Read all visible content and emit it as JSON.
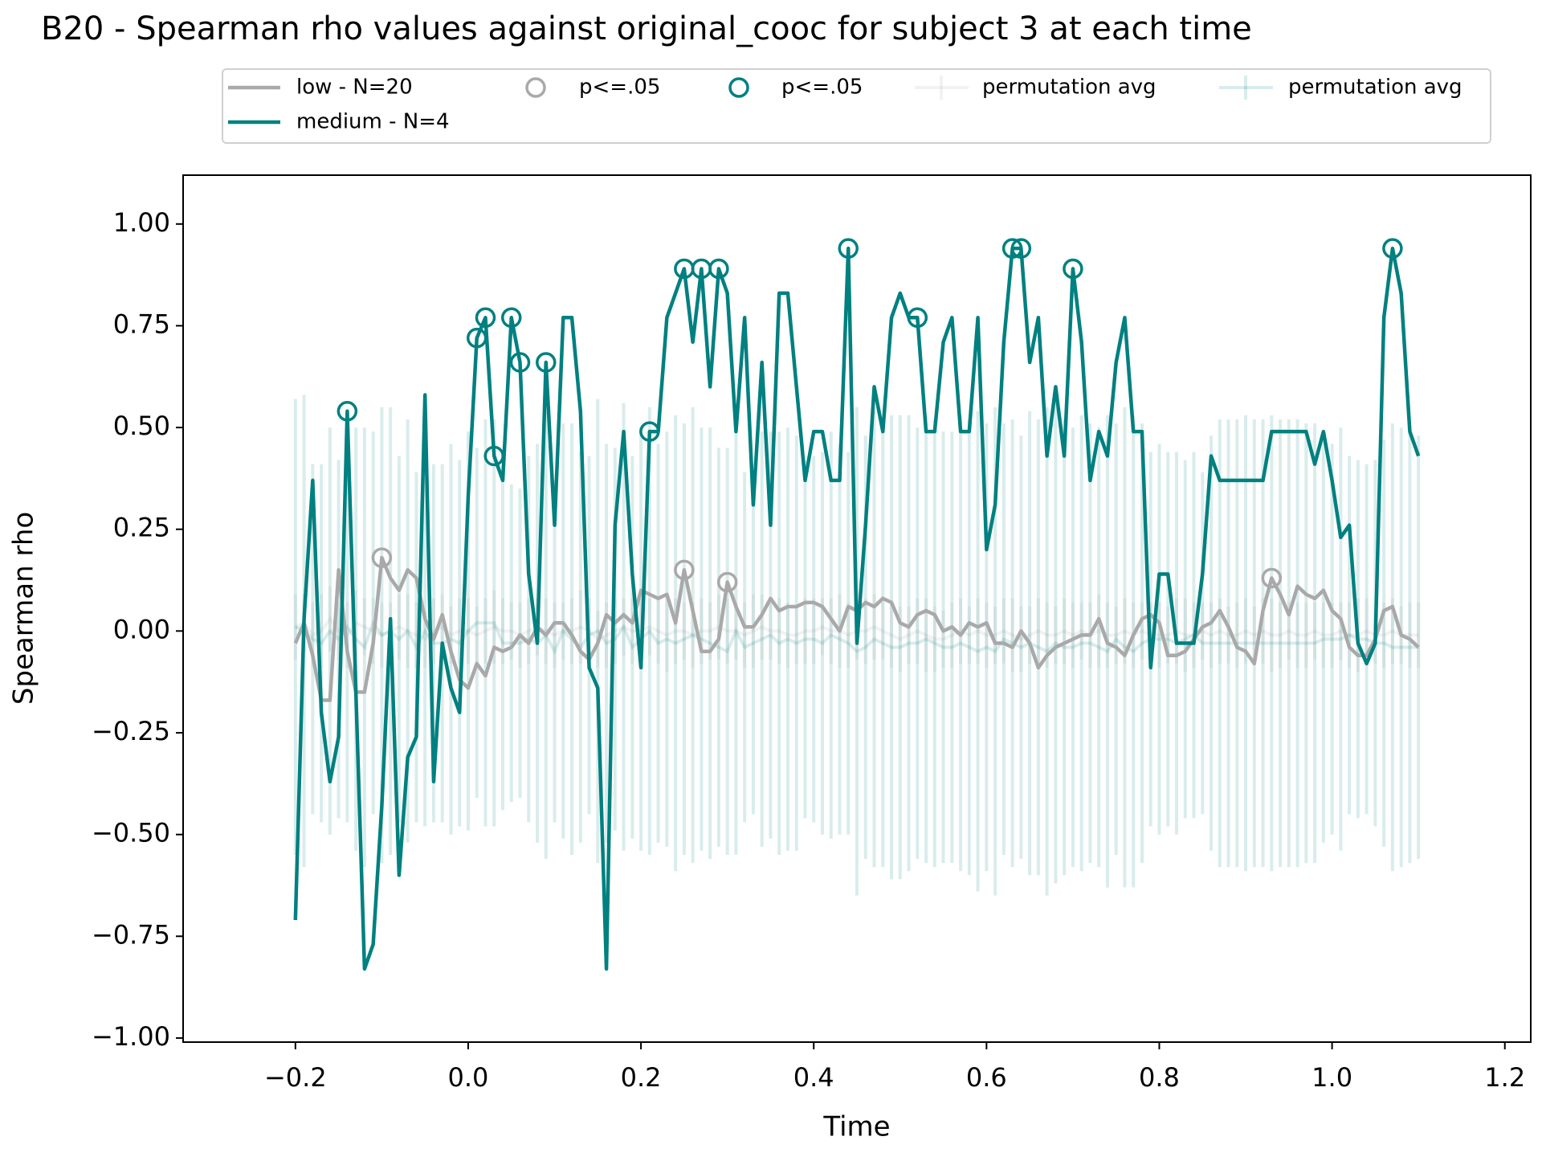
{
  "chart_data": {
    "type": "line",
    "title": "B20 - Spearman rho values against original_cooc for subject 3 at each time",
    "xlabel": "Time",
    "ylabel": "Spearman rho",
    "xlim": [
      -0.33,
      1.23
    ],
    "ylim": [
      -1.01,
      1.12
    ],
    "xticks": [
      {
        "value": -0.2,
        "label": "−0.2"
      },
      {
        "value": 0,
        "label": "0.0"
      },
      0.2,
      0.4,
      0.6,
      0.8,
      {
        "value": 1,
        "label": "1.0"
      },
      1.2
    ],
    "yticks": [
      {
        "value": -1,
        "label": "−1.00"
      },
      {
        "value": -0.75,
        "label": "−0.75"
      },
      {
        "value": -0.5,
        "label": "−0.50"
      },
      {
        "value": -0.25,
        "label": "−0.25"
      },
      {
        "value": 0,
        "label": "0.00"
      },
      {
        "value": 0.25,
        "label": "0.25"
      },
      {
        "value": 0.5,
        "label": "0.50"
      },
      {
        "value": 0.75,
        "label": "0.75"
      },
      {
        "value": 1,
        "label": "1.00"
      }
    ],
    "grid": false,
    "legend": "upper center",
    "x": [
      -0.2,
      -0.19,
      -0.18,
      -0.17,
      -0.16,
      -0.15,
      -0.14,
      -0.13,
      -0.12,
      -0.11,
      -0.1,
      -0.09,
      -0.08,
      -0.07,
      -0.06,
      -0.05,
      -0.04,
      -0.03,
      -0.02,
      -0.01,
      0,
      0.01,
      0.02,
      0.03,
      0.04,
      0.05,
      0.06,
      0.07,
      0.08,
      0.09,
      0.1,
      0.11,
      0.12,
      0.13,
      0.14,
      0.15,
      0.16,
      0.17,
      0.18,
      0.19,
      0.2,
      0.21,
      0.22,
      0.23,
      0.24,
      0.25,
      0.26,
      0.27,
      0.28,
      0.29,
      0.3,
      0.31,
      0.32,
      0.33,
      0.34,
      0.35,
      0.36,
      0.37,
      0.38,
      0.39,
      0.4,
      0.41,
      0.42,
      0.43,
      0.44,
      0.45,
      0.46,
      0.47,
      0.48,
      0.49,
      0.5,
      0.51,
      0.52,
      0.53,
      0.54,
      0.55,
      0.56,
      0.57,
      0.58,
      0.59,
      0.6,
      0.61,
      0.62,
      0.63,
      0.64,
      0.65,
      0.66,
      0.67,
      0.68,
      0.69,
      0.7,
      0.71,
      0.72,
      0.73,
      0.74,
      0.75,
      0.76,
      0.77,
      0.78,
      0.79,
      0.8,
      0.81,
      0.82,
      0.83,
      0.84,
      0.85,
      0.86,
      0.87,
      0.88,
      0.89,
      0.9,
      0.91,
      0.92,
      0.93,
      0.94,
      0.95,
      0.96,
      0.97,
      0.98,
      0.99,
      1,
      1.01,
      1.02,
      1.03,
      1.04,
      1.05,
      1.06,
      1.07,
      1.08,
      1.09,
      1.1
    ],
    "series": [
      {
        "name": "low - N=20",
        "color": "#a9a9a9",
        "kind": "line",
        "values": [
          -0.03,
          0.02,
          -0.06,
          -0.17,
          -0.17,
          0.15,
          -0.05,
          -0.15,
          -0.15,
          -0.03,
          0.18,
          0.13,
          0.1,
          0.15,
          0.13,
          0.03,
          -0.02,
          0.04,
          -0.05,
          -0.12,
          -0.14,
          -0.08,
          -0.11,
          -0.04,
          -0.05,
          -0.04,
          -0.01,
          -0.03,
          0.01,
          -0.01,
          0.02,
          0.02,
          -0.01,
          -0.05,
          -0.07,
          -0.03,
          0.04,
          0.02,
          0.04,
          0.02,
          0.1,
          0.09,
          0.08,
          0.09,
          0.02,
          0.15,
          0.05,
          -0.05,
          -0.05,
          -0.02,
          0.12,
          0.06,
          0.01,
          0.01,
          0.04,
          0.08,
          0.05,
          0.06,
          0.06,
          0.07,
          0.07,
          0.06,
          0.03,
          0,
          0.06,
          0.05,
          0.07,
          0.06,
          0.08,
          0.07,
          0.02,
          0.01,
          0.04,
          0.05,
          0.04,
          0,
          0.01,
          -0.01,
          0.02,
          0.01,
          0.02,
          -0.03,
          -0.03,
          -0.04,
          0,
          -0.03,
          -0.09,
          -0.06,
          -0.04,
          -0.03,
          -0.02,
          -0.01,
          -0.01,
          0.03,
          -0.03,
          -0.04,
          -0.06,
          -0.01,
          0.03,
          0.04,
          0.02,
          -0.06,
          -0.06,
          -0.05,
          -0.02,
          0.01,
          0.02,
          0.05,
          0.01,
          -0.04,
          -0.05,
          -0.08,
          0.05,
          0.13,
          0.09,
          0.04,
          0.11,
          0.09,
          0.08,
          0.1,
          0.05,
          0.03,
          -0.04,
          -0.06,
          -0.06,
          -0.02,
          0.05,
          0.06,
          -0.01,
          -0.02,
          -0.04
        ]
      },
      {
        "name": "medium - N=4",
        "color": "#008080",
        "kind": "line",
        "values": [
          -0.71,
          0.03,
          0.37,
          -0.2,
          -0.37,
          -0.26,
          0.54,
          -0.15,
          -0.83,
          -0.77,
          -0.43,
          0.03,
          -0.6,
          -0.31,
          -0.26,
          0.58,
          -0.37,
          -0.03,
          -0.14,
          -0.2,
          0.33,
          0.72,
          0.77,
          0.43,
          0.37,
          0.77,
          0.66,
          0.14,
          -0.03,
          0.66,
          0.26,
          0.77,
          0.77,
          0.54,
          -0.09,
          -0.14,
          -0.83,
          0.26,
          0.49,
          0.14,
          -0.09,
          0.49,
          0.49,
          0.77,
          0.83,
          0.89,
          0.71,
          0.89,
          0.6,
          0.89,
          0.83,
          0.49,
          0.77,
          0.31,
          0.66,
          0.26,
          0.83,
          0.83,
          0.6,
          0.37,
          0.49,
          0.49,
          0.37,
          0.37,
          0.94,
          -0.03,
          0.26,
          0.6,
          0.49,
          0.77,
          0.83,
          0.77,
          0.77,
          0.49,
          0.49,
          0.71,
          0.77,
          0.49,
          0.49,
          0.77,
          0.2,
          0.31,
          0.71,
          0.94,
          0.94,
          0.66,
          0.77,
          0.43,
          0.6,
          0.43,
          0.89,
          0.71,
          0.37,
          0.49,
          0.43,
          0.66,
          0.77,
          0.49,
          0.49,
          -0.09,
          0.14,
          0.14,
          -0.03,
          -0.03,
          -0.03,
          0.14,
          0.43,
          0.37,
          0.37,
          0.37,
          0.37,
          0.37,
          0.37,
          0.49,
          0.49,
          0.49,
          0.49,
          0.49,
          0.41,
          0.49,
          0.37,
          0.23,
          0.26,
          -0.03,
          -0.08,
          -0.03,
          0.77,
          0.94,
          0.83,
          0.49,
          0.43
        ]
      },
      {
        "name": "p<=.05",
        "color": "#a9a9a9",
        "kind": "scatter",
        "x": [
          -0.1,
          0.25,
          0.3,
          0.93
        ],
        "values": [
          0.18,
          0.15,
          0.12,
          0.13
        ]
      },
      {
        "name": "p<=.05",
        "color": "#008080",
        "kind": "scatter",
        "x": [
          -0.14,
          0.01,
          0.02,
          0.03,
          0.05,
          0.06,
          0.09,
          0.21,
          0.25,
          0.27,
          0.29,
          0.44,
          0.52,
          0.63,
          0.64,
          0.7,
          1.07
        ],
        "values": [
          0.54,
          0.72,
          0.77,
          0.43,
          0.77,
          0.66,
          0.66,
          0.49,
          0.89,
          0.89,
          0.89,
          0.94,
          0.77,
          0.94,
          0.94,
          0.89,
          0.94
        ]
      },
      {
        "name": "permutation avg",
        "color": "#a9a9a9",
        "kind": "errorbar",
        "values": [
          0.01,
          0.02,
          -0.01,
          0,
          0.03,
          0,
          -0.01,
          0.02,
          0.01,
          0,
          -0.01,
          0,
          0.01,
          0,
          -0.01,
          -0.02,
          0,
          0.01,
          -0.01,
          0,
          0,
          -0.01,
          0,
          0.01,
          0,
          0,
          -0.01,
          0,
          0.01,
          0,
          -0.01,
          0,
          0,
          0.01,
          0,
          -0.02,
          -0.01,
          0,
          0.01,
          0,
          0,
          0.01,
          0,
          -0.01,
          0,
          0,
          -0.01,
          0,
          0,
          0.01,
          0,
          0,
          -0.01,
          0,
          0.01,
          0,
          0,
          -0.01,
          -0.01,
          0,
          0,
          0.01,
          0,
          0,
          -0.01,
          0,
          0,
          0.01,
          0,
          -0.01,
          -0.02,
          -0.01,
          0,
          -0.01,
          -0.02,
          -0.02,
          -0.01,
          0,
          -0.01,
          0,
          -0.01,
          -0.01,
          0,
          -0.01,
          -0.02,
          -0.01,
          0,
          -0.01,
          -0.01,
          0,
          -0.01,
          0,
          -0.01,
          0,
          -0.01,
          -0.01,
          0,
          -0.01,
          0,
          -0.01,
          -0.01,
          -0.01,
          0,
          -0.01,
          -0.01,
          0,
          -0.01,
          0,
          -0.01,
          -0.01,
          0,
          -0.01,
          0,
          -0.01,
          -0.01,
          0,
          -0.01,
          -0.01,
          0,
          -0.01,
          -0.01,
          0,
          -0.01,
          -0.01,
          0,
          -0.01,
          -0.01,
          0,
          -0.01,
          -0.01,
          -0.01
        ],
        "errors": [
          0.08,
          0.07,
          0.08,
          0.09,
          0.08,
          0.07,
          0.08,
          0.08,
          0.07,
          0.08,
          0.08,
          0.07,
          0.08,
          0.09,
          0.08,
          0.07,
          0.08,
          0.08,
          0.07,
          0.08,
          0.08,
          0.07,
          0.08,
          0.09,
          0.08,
          0.07,
          0.08,
          0.08,
          0.07,
          0.08,
          0.08,
          0.07,
          0.08,
          0.09,
          0.08,
          0.07,
          0.08,
          0.08,
          0.07,
          0.08,
          0.08,
          0.07,
          0.08,
          0.09,
          0.08,
          0.07,
          0.08,
          0.08,
          0.07,
          0.08,
          0.08,
          0.07,
          0.08,
          0.09,
          0.08,
          0.07,
          0.08,
          0.08,
          0.07,
          0.08,
          0.08,
          0.07,
          0.08,
          0.09,
          0.08,
          0.07,
          0.08,
          0.08,
          0.07,
          0.08,
          0.08,
          0.07,
          0.08,
          0.09,
          0.08,
          0.07,
          0.08,
          0.08,
          0.07,
          0.08,
          0.08,
          0.07,
          0.08,
          0.09,
          0.08,
          0.07,
          0.08,
          0.08,
          0.07,
          0.08,
          0.08,
          0.07,
          0.08,
          0.09,
          0.08,
          0.07,
          0.08,
          0.08,
          0.07,
          0.08,
          0.08,
          0.07,
          0.08,
          0.09,
          0.08,
          0.07,
          0.08,
          0.08,
          0.07,
          0.08,
          0.08,
          0.07,
          0.08,
          0.09,
          0.08,
          0.07,
          0.08,
          0.08,
          0.07,
          0.08,
          0.08,
          0.07,
          0.08,
          0.09,
          0.08,
          0.07,
          0.08,
          0.08,
          0.07,
          0.08,
          0.08
        ]
      },
      {
        "name": "permutation avg",
        "color": "#008080",
        "kind": "errorbar",
        "values": [
          0.01,
          0,
          -0.02,
          -0.03,
          0,
          -0.02,
          0.01,
          -0.02,
          -0.04,
          0.02,
          -0.01,
          0,
          -0.02,
          0,
          -0.04,
          0,
          -0.03,
          -0.03,
          -0.02,
          -0.03,
          0,
          0.02,
          0.02,
          0.02,
          -0.03,
          -0.03,
          -0.03,
          -0.02,
          -0.03,
          -0.01,
          -0.05,
          0,
          -0.02,
          -0.04,
          -0.01,
          0,
          -0.03,
          -0.02,
          0.01,
          -0.04,
          -0.02,
          0,
          -0.03,
          -0.02,
          -0.03,
          -0.02,
          -0.01,
          -0.02,
          -0.03,
          -0.04,
          -0.05,
          0,
          -0.04,
          -0.03,
          -0.02,
          -0.01,
          -0.03,
          -0.02,
          -0.03,
          -0.02,
          -0.02,
          -0.03,
          -0.01,
          -0.02,
          -0.03,
          -0.05,
          -0.04,
          -0.02,
          -0.03,
          -0.04,
          -0.04,
          -0.03,
          -0.03,
          -0.02,
          -0.03,
          -0.04,
          -0.04,
          -0.03,
          -0.04,
          -0.05,
          -0.04,
          -0.05,
          -0.02,
          -0.03,
          -0.04,
          -0.03,
          -0.04,
          -0.05,
          -0.03,
          -0.04,
          -0.04,
          -0.03,
          -0.03,
          -0.04,
          -0.05,
          -0.02,
          -0.04,
          -0.05,
          -0.03,
          -0.02,
          -0.02,
          -0.02,
          -0.03,
          -0.02,
          -0.01,
          -0.03,
          -0.03,
          -0.03,
          -0.03,
          -0.03,
          -0.03,
          -0.03,
          -0.03,
          -0.03,
          -0.03,
          -0.03,
          -0.03,
          -0.03,
          -0.03,
          -0.02,
          -0.02,
          -0.02,
          -0.01,
          -0.02,
          -0.02,
          -0.03,
          -0.03,
          -0.04,
          -0.04,
          -0.04,
          -0.04
        ],
        "errors": [
          0.56,
          0.58,
          0.43,
          0.44,
          0.5,
          0.44,
          0.48,
          0.52,
          0.54,
          0.47,
          0.56,
          0.55,
          0.45,
          0.52,
          0.43,
          0.48,
          0.44,
          0.44,
          0.48,
          0.45,
          0.49,
          0.43,
          0.5,
          0.5,
          0.41,
          0.39,
          0.38,
          0.45,
          0.49,
          0.55,
          0.42,
          0.51,
          0.53,
          0.48,
          0.44,
          0.57,
          0.49,
          0.47,
          0.55,
          0.47,
          0.52,
          0.55,
          0.49,
          0.51,
          0.56,
          0.53,
          0.56,
          0.52,
          0.53,
          0.49,
          0.5,
          0.55,
          0.43,
          0.42,
          0.51,
          0.5,
          0.52,
          0.52,
          0.51,
          0.44,
          0.45,
          0.47,
          0.5,
          0.48,
          0.47,
          0.6,
          0.52,
          0.56,
          0.55,
          0.57,
          0.57,
          0.56,
          0.53,
          0.55,
          0.55,
          0.53,
          0.53,
          0.56,
          0.56,
          0.59,
          0.55,
          0.6,
          0.53,
          0.55,
          0.52,
          0.57,
          0.56,
          0.6,
          0.59,
          0.56,
          0.54,
          0.56,
          0.54,
          0.54,
          0.58,
          0.53,
          0.59,
          0.58,
          0.54,
          0.46,
          0.48,
          0.46,
          0.47,
          0.44,
          0.45,
          0.42,
          0.51,
          0.55,
          0.55,
          0.55,
          0.56,
          0.55,
          0.55,
          0.56,
          0.55,
          0.55,
          0.55,
          0.54,
          0.54,
          0.5,
          0.48,
          0.52,
          0.44,
          0.44,
          0.43,
          0.45,
          0.5,
          0.55,
          0.54,
          0.53,
          0.52
        ]
      }
    ]
  }
}
